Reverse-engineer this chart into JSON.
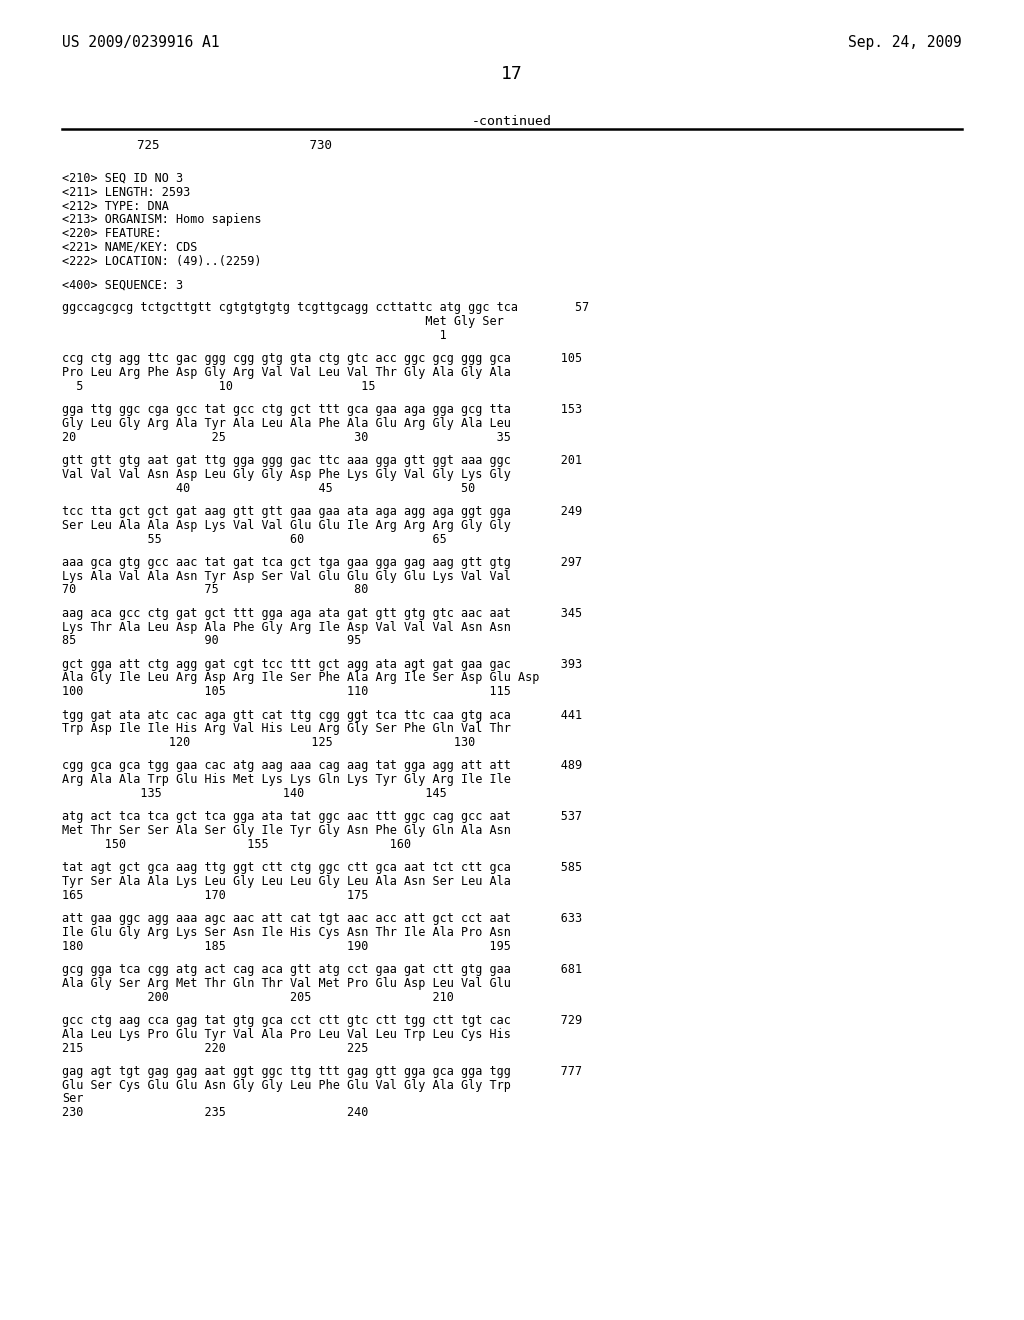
{
  "header_left": "US 2009/0239916 A1",
  "header_right": "Sep. 24, 2009",
  "page_number": "17",
  "continued_label": "-continued",
  "ruler_line1": "          725                    730",
  "background_color": "#ffffff",
  "text_color": "#000000",
  "content_lines": [
    "<210> SEQ ID NO 3",
    "<211> LENGTH: 2593",
    "<212> TYPE: DNA",
    "<213> ORGANISM: Homo sapiens",
    "<220> FEATURE:",
    "<221> NAME/KEY: CDS",
    "<222> LOCATION: (49)..(2259)",
    "",
    "<400> SEQUENCE: 3",
    "",
    "ggccagcgcg tctgcttgtt cgtgtgtgtg tcgttgcagg ccttattc atg ggc tca        57",
    "                                                   Met Gly Ser",
    "                                                     1",
    "",
    "ccg ctg agg ttc gac ggg cgg gtg gta ctg gtc acc ggc gcg ggg gca       105",
    "Pro Leu Arg Phe Asp Gly Arg Val Val Leu Val Thr Gly Ala Gly Ala",
    "  5                   10                  15",
    "",
    "gga ttg ggc cga gcc tat gcc ctg gct ttt gca gaa aga gga gcg tta       153",
    "Gly Leu Gly Arg Ala Tyr Ala Leu Ala Phe Ala Glu Arg Gly Ala Leu",
    "20                   25                  30                  35",
    "",
    "gtt gtt gtg aat gat ttg gga ggg gac ttc aaa gga gtt ggt aaa ggc       201",
    "Val Val Val Asn Asp Leu Gly Gly Asp Phe Lys Gly Val Gly Lys Gly",
    "                40                  45                  50",
    "",
    "tcc tta gct gct gat aag gtt gtt gaa gaa ata aga agg aga ggt gga       249",
    "Ser Leu Ala Ala Asp Lys Val Val Glu Glu Ile Arg Arg Arg Gly Gly",
    "            55                  60                  65",
    "",
    "aaa gca gtg gcc aac tat gat tca gct tga gaa gga gag aag gtt gtg       297",
    "Lys Ala Val Ala Asn Tyr Asp Ser Val Glu Glu Gly Glu Lys Val Val",
    "70                  75                   80",
    "",
    "aag aca gcc ctg gat gct ttt gga aga ata gat gtt gtg gtc aac aat       345",
    "Lys Thr Ala Leu Asp Ala Phe Gly Arg Ile Asp Val Val Val Asn Asn",
    "85                  90                  95",
    "",
    "gct gga att ctg agg gat cgt tcc ttt gct agg ata agt gat gaa gac       393",
    "Ala Gly Ile Leu Arg Asp Arg Ile Ser Phe Ala Arg Ile Ser Asp Glu Asp",
    "100                 105                 110                 115",
    "",
    "tgg gat ata atc cac aga gtt cat ttg cgg ggt tca ttc caa gtg aca       441",
    "Trp Asp Ile Ile His Arg Val His Leu Arg Gly Ser Phe Gln Val Thr",
    "               120                 125                 130",
    "",
    "cgg gca gca tgg gaa cac atg aag aaa cag aag tat gga agg att att       489",
    "Arg Ala Ala Trp Glu His Met Lys Lys Gln Lys Tyr Gly Arg Ile Ile",
    "           135                 140                 145",
    "",
    "atg act tca tca gct tca gga ata tat ggc aac ttt ggc cag gcc aat       537",
    "Met Thr Ser Ser Ala Ser Gly Ile Tyr Gly Asn Phe Gly Gln Ala Asn",
    "      150                 155                 160",
    "",
    "tat agt gct gca aag ttg ggt ctt ctg ggc ctt gca aat tct ctt gca       585",
    "Tyr Ser Ala Ala Lys Leu Gly Leu Leu Gly Leu Ala Asn Ser Leu Ala",
    "165                 170                 175",
    "",
    "att gaa ggc agg aaa agc aac att cat tgt aac acc att gct cct aat       633",
    "Ile Glu Gly Arg Lys Ser Asn Ile His Cys Asn Thr Ile Ala Pro Asn",
    "180                 185                 190                 195",
    "",
    "gcg gga tca cgg atg act cag aca gtt atg cct gaa gat ctt gtg gaa       681",
    "Ala Gly Ser Arg Met Thr Gln Thr Val Met Pro Glu Asp Leu Val Glu",
    "            200                 205                 210",
    "",
    "gcc ctg aag cca gag tat gtg gca cct ctt gtc ctt tgg ctt tgt cac       729",
    "Ala Leu Lys Pro Glu Tyr Val Ala Pro Leu Val Leu Trp Leu Cys His",
    "215                 220                 225",
    "",
    "gag agt tgt gag gag aat ggt ggc ttg ttt gag gtt gga gca gga tgg       777",
    "Glu Ser Cys Glu Glu Asn Gly Gly Leu Phe Glu Val Gly Ala Gly Trp",
    "Ser",
    "230                 235                 240"
  ]
}
